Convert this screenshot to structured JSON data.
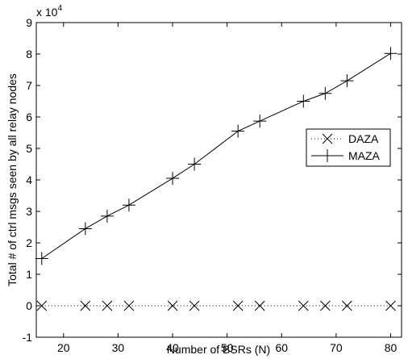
{
  "chart_data": {
    "type": "line",
    "title": "",
    "xlabel": "Number of BSRs (N)",
    "ylabel": "Total # of ctrl msgs seen by all relay nodes",
    "y_multiplier_base": "x 10",
    "y_multiplier_exponent": "4",
    "xlim": [
      15,
      82
    ],
    "ylim": [
      -1,
      9
    ],
    "xticks": [
      20,
      30,
      40,
      50,
      60,
      70,
      80
    ],
    "yticks": [
      -1,
      0,
      1,
      2,
      3,
      4,
      5,
      6,
      7,
      8,
      9
    ],
    "grid": false,
    "legend_position": "right",
    "series": [
      {
        "name": "DAZA",
        "marker": "x",
        "line": "dotted",
        "color": "#000000",
        "x": [
          16,
          24,
          28,
          32,
          40,
          44,
          52,
          56,
          64,
          68,
          72,
          80
        ],
        "y": [
          0,
          0,
          0,
          0,
          0,
          0,
          0,
          0,
          0,
          0,
          0,
          0
        ]
      },
      {
        "name": "MAZA",
        "marker": "+",
        "line": "solid",
        "color": "#000000",
        "x": [
          16,
          24,
          28,
          32,
          40,
          44,
          52,
          56,
          64,
          68,
          72,
          80
        ],
        "y": [
          1.5,
          2.45,
          2.85,
          3.2,
          4.05,
          4.5,
          5.55,
          5.87,
          6.5,
          6.75,
          7.15,
          8.02
        ]
      }
    ]
  }
}
